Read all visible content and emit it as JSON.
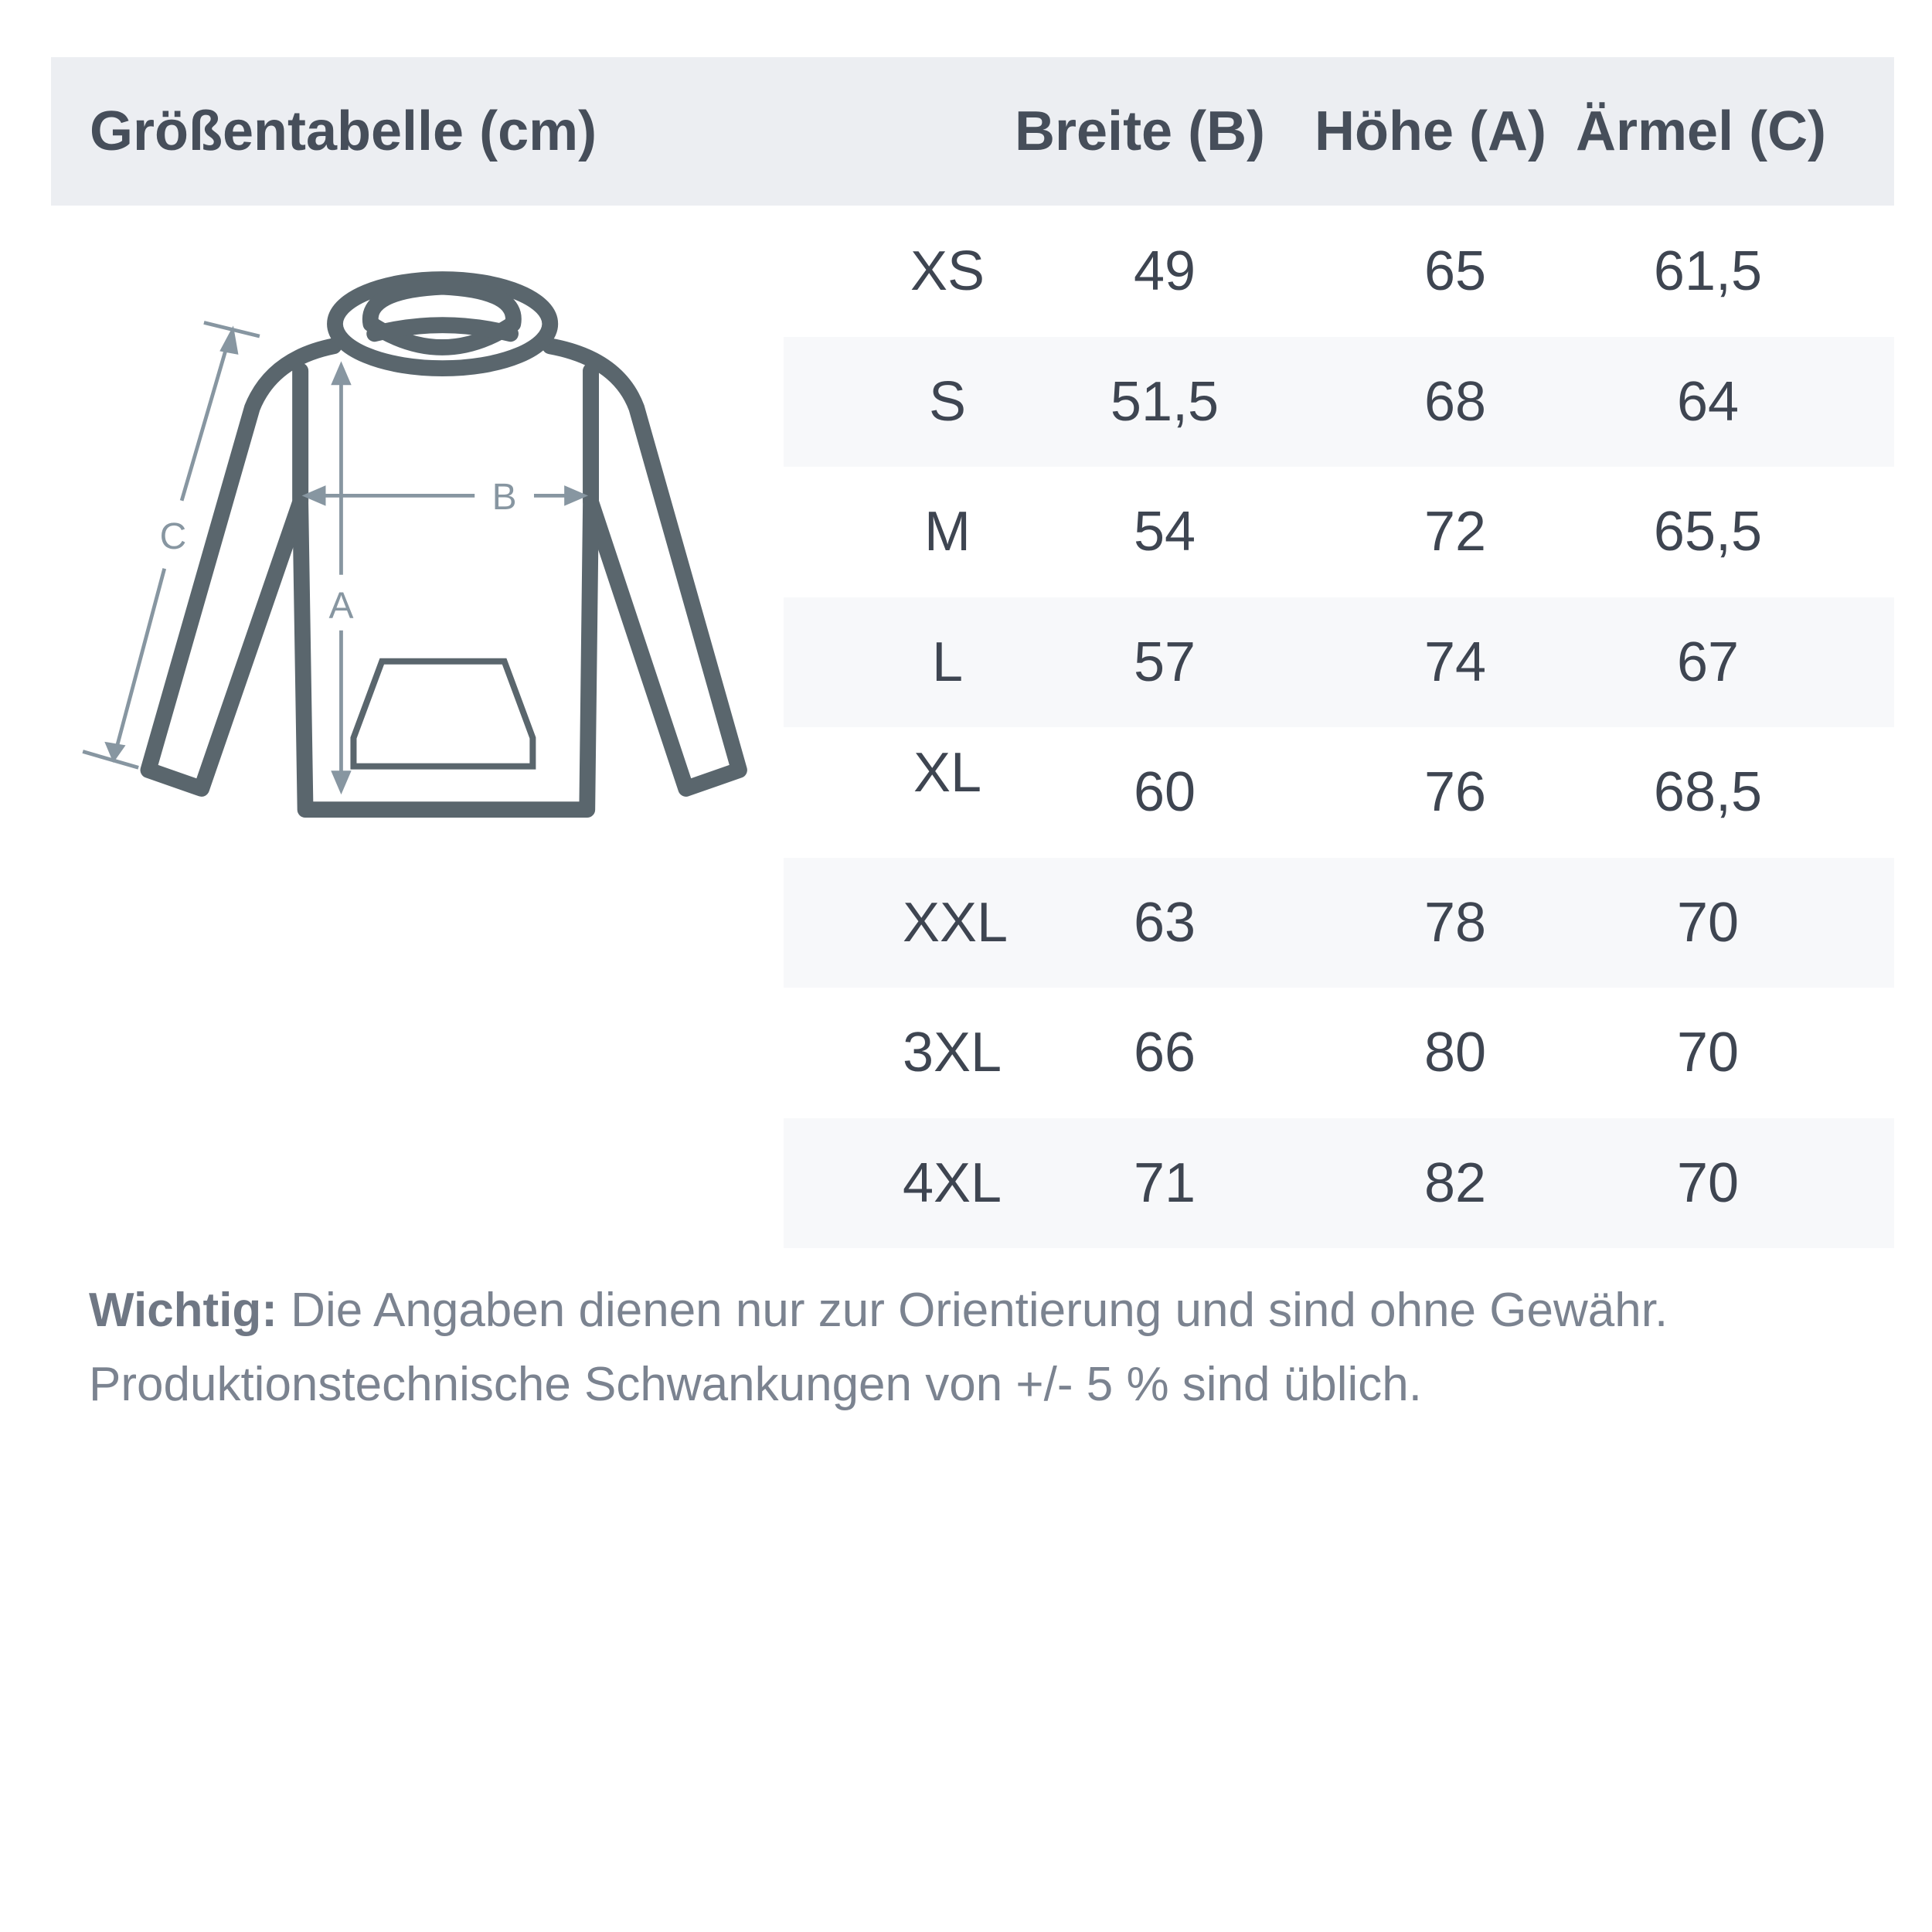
{
  "header": {
    "title": "Größentabelle (cm)",
    "columns": [
      "Breite (B)",
      "Höhe (A)",
      "Ärmel (C)"
    ]
  },
  "diagram": {
    "labels": {
      "width": "B",
      "height": "A",
      "sleeve": "C"
    },
    "icon": "hoodie-measurement-icon",
    "outline_color": "#5a666d",
    "arrow_color": "#8796a1"
  },
  "table": {
    "rows": [
      {
        "size": "XS",
        "breite": "49",
        "hoehe": "65",
        "aermel": "61,5"
      },
      {
        "size": "S",
        "breite": "51,5",
        "hoehe": "68",
        "aermel": "64"
      },
      {
        "size": "M",
        "breite": "54",
        "hoehe": "72",
        "aermel": "65,5"
      },
      {
        "size": "L",
        "breite": "57",
        "hoehe": "74",
        "aermel": "67"
      },
      {
        "size": "XL",
        "breite": "60",
        "hoehe": "76",
        "aermel": "68,5"
      },
      {
        "size": "XXL",
        "breite": "63",
        "hoehe": "78",
        "aermel": "70"
      },
      {
        "size": "3XL",
        "breite": "66",
        "hoehe": "80",
        "aermel": "70"
      },
      {
        "size": "4XL",
        "breite": "71",
        "hoehe": "82",
        "aermel": "70"
      }
    ]
  },
  "note": {
    "label": "Wichtig:",
    "line1": " Die Angaben dienen nur zur Orientierung und sind ohne Gewähr.",
    "line2": "Produktionstechnische Schwankungen von +/- 5 % sind üblich."
  }
}
